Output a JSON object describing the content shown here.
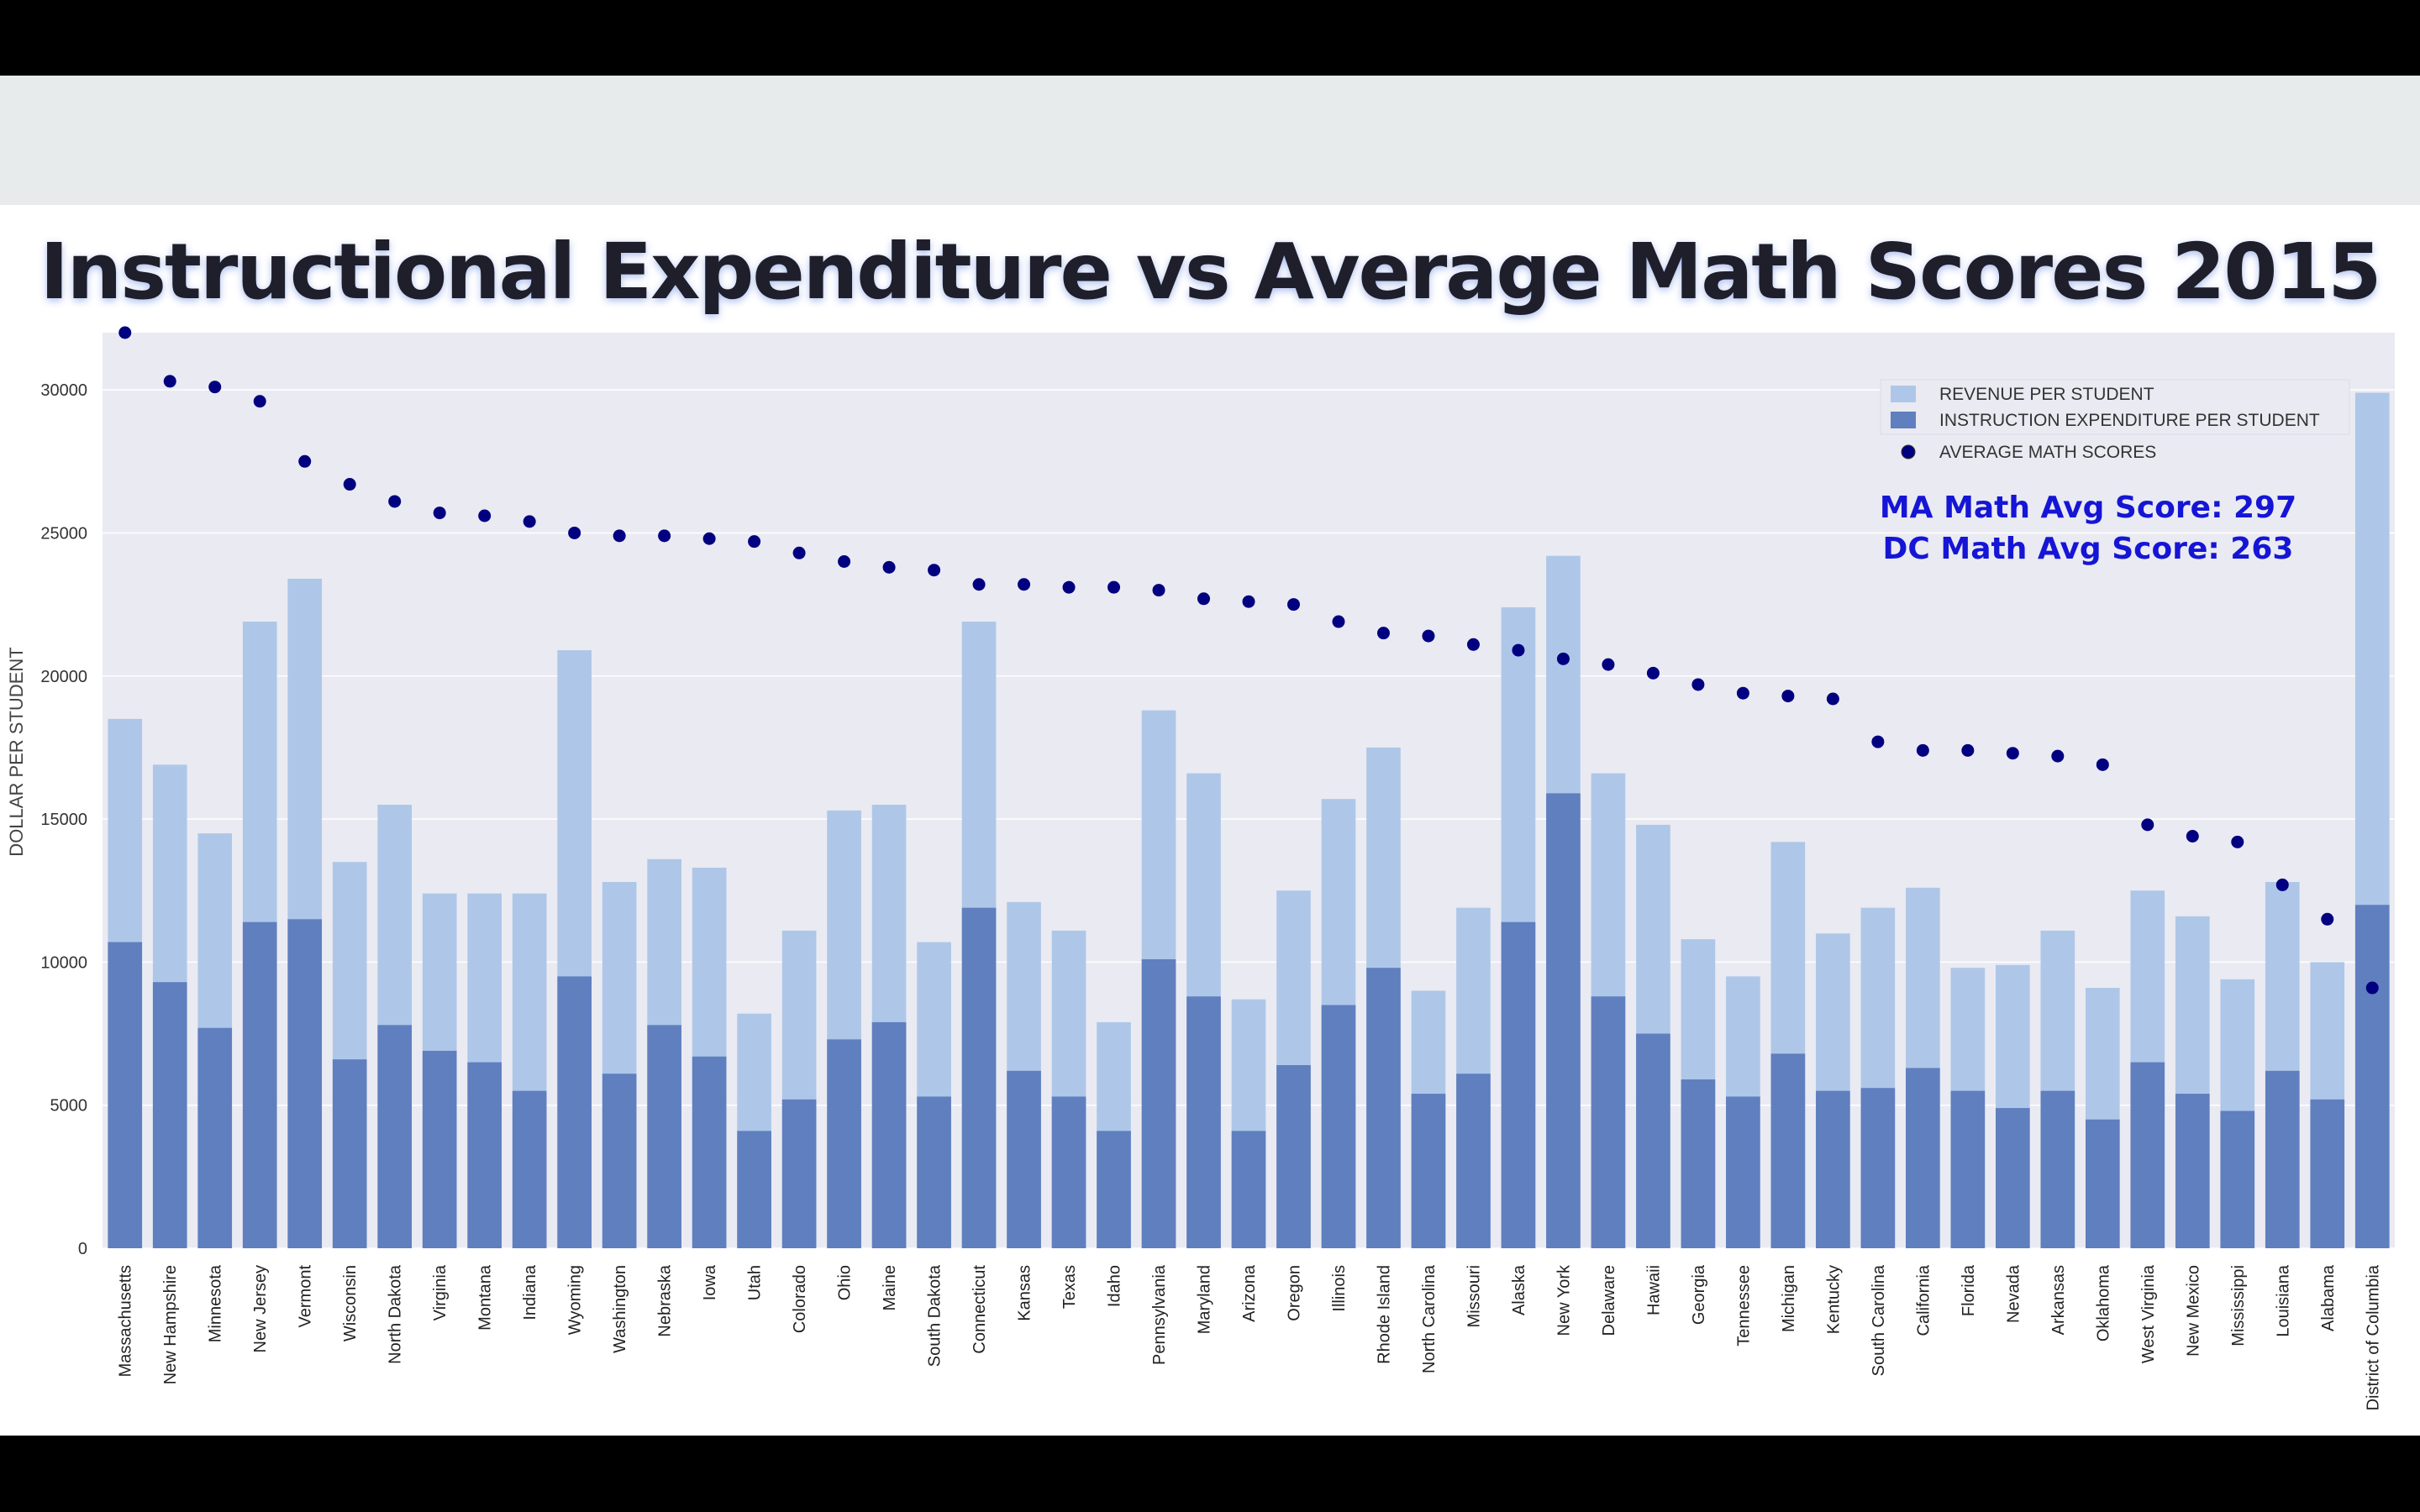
{
  "chart_data": {
    "type": "bar",
    "title": "Instructional Expenditure vs Average Math Scores 2015",
    "ylabel": "DOLLAR PER STUDENT",
    "xlabel": "",
    "ylim": [
      0,
      32000
    ],
    "yticks": [
      0,
      5000,
      10000,
      15000,
      20000,
      25000,
      30000
    ],
    "grid": true,
    "legend_position": "top-right",
    "categories": [
      "Massachusetts",
      "New Hampshire",
      "Minnesota",
      "New Jersey",
      "Vermont",
      "Wisconsin",
      "North Dakota",
      "Virginia",
      "Montana",
      "Indiana",
      "Wyoming",
      "Washington",
      "Nebraska",
      "Iowa",
      "Utah",
      "Colorado",
      "Ohio",
      "Maine",
      "South Dakota",
      "Connecticut",
      "Kansas",
      "Texas",
      "Idaho",
      "Pennsylvania",
      "Maryland",
      "Arizona",
      "Oregon",
      "Illinois",
      "Rhode Island",
      "North Carolina",
      "Missouri",
      "Alaska",
      "New York",
      "Delaware",
      "Hawaii",
      "Georgia",
      "Tennessee",
      "Michigan",
      "Kentucky",
      "South Carolina",
      "California",
      "Florida",
      "Nevada",
      "Arkansas",
      "Oklahoma",
      "West Virginia",
      "New Mexico",
      "Mississippi",
      "Louisiana",
      "Alabama",
      "District of Columbia"
    ],
    "series": [
      {
        "name": "REVENUE PER STUDENT",
        "kind": "bar",
        "color": "#aec7e8",
        "values": [
          18500,
          16900,
          14500,
          21900,
          23400,
          13500,
          15500,
          12400,
          12400,
          12400,
          20900,
          12800,
          13600,
          13300,
          8200,
          11100,
          15300,
          15500,
          10700,
          21900,
          12100,
          11100,
          7900,
          18800,
          16600,
          8700,
          12500,
          15700,
          17500,
          9000,
          11900,
          22400,
          24200,
          16600,
          14800,
          10800,
          9500,
          14200,
          11000,
          11900,
          12600,
          9800,
          9900,
          11100,
          9100,
          12500,
          11600,
          9400,
          12800,
          10000,
          29900
        ]
      },
      {
        "name": "INSTRUCTION EXPENDITURE PER STUDENT",
        "kind": "bar",
        "color": "#5f7fbf",
        "values": [
          10700,
          9300,
          7700,
          11400,
          11500,
          6600,
          7800,
          6900,
          6500,
          5500,
          9500,
          6100,
          7800,
          6700,
          4100,
          5200,
          7300,
          7900,
          5300,
          11900,
          6200,
          5300,
          4100,
          10100,
          8800,
          4100,
          6400,
          8500,
          9800,
          5400,
          6100,
          11400,
          15900,
          8800,
          7500,
          5900,
          5300,
          6800,
          5500,
          5600,
          6300,
          5500,
          4900,
          5500,
          4500,
          6500,
          5400,
          4800,
          6200,
          5200,
          12000
        ]
      },
      {
        "name": "AVERAGE MATH SCORES",
        "kind": "scatter",
        "color": "#000080",
        "values": [
          32000,
          30300,
          30100,
          29600,
          27500,
          26700,
          26100,
          25700,
          25600,
          25400,
          25000,
          24900,
          24900,
          24800,
          24700,
          24300,
          24000,
          23800,
          23700,
          23200,
          23200,
          23100,
          23100,
          23000,
          22700,
          22600,
          22500,
          21900,
          21500,
          21400,
          21100,
          20900,
          20600,
          20400,
          20100,
          19700,
          19400,
          19300,
          19200,
          17700,
          17400,
          17400,
          17300,
          17200,
          16900,
          14800,
          14400,
          14200,
          12700,
          11500,
          9100
        ]
      }
    ],
    "annotations": [
      "MA Math Avg Score: 297",
      "DC Math Avg Score: 263"
    ]
  },
  "colors": {
    "plot_background": "#eaeaf2",
    "revenue": "#aec7e8",
    "instruction": "#5f7fbf",
    "scores": "#000080",
    "annotation": "#1515d6"
  }
}
